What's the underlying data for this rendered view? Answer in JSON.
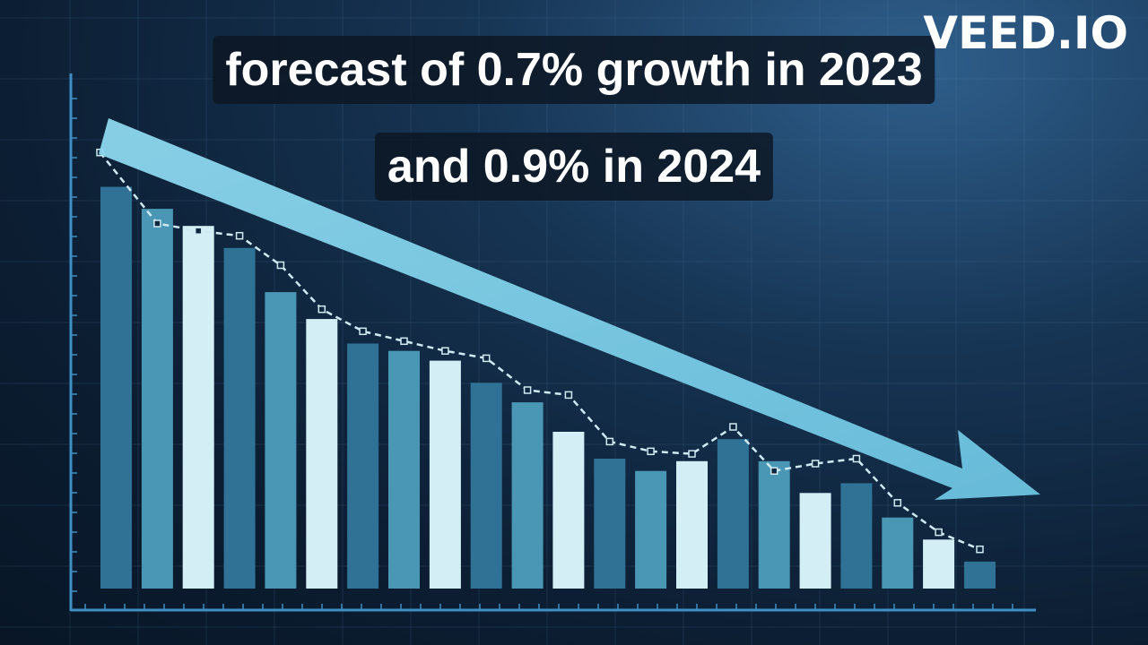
{
  "captions": {
    "line1": "forecast of 0.7% growth in 2023",
    "line2": "and 0.9% in 2024"
  },
  "watermark": "VEED.IO",
  "colors": {
    "background": "#0c1e33",
    "axis": "#3f8fc4",
    "arrow": "#7ccde6",
    "trend_line": "#cfeaf3",
    "bar_palette": [
      "#2f7296",
      "#4a97b5",
      "#d3eef4"
    ]
  },
  "chart_data": {
    "type": "bar",
    "title": "",
    "xlabel": "",
    "ylabel": "",
    "ylim": [
      0,
      100
    ],
    "grid": true,
    "bar_colors": [
      "#2f7296",
      "#4a97b5",
      "#d3eef4",
      "#2f7296",
      "#4a97b5",
      "#d3eef4",
      "#2f7296",
      "#4a97b5",
      "#d3eef4",
      "#2f7296",
      "#4a97b5",
      "#d3eef4",
      "#2f7296",
      "#4a97b5",
      "#d3eef4",
      "#2f7296",
      "#4a97b5",
      "#d3eef4",
      "#2f7296",
      "#4a97b5",
      "#d3eef4",
      "#2f7296"
    ],
    "series": [
      {
        "values": [
          82,
          77.5,
          74,
          69.5,
          60.5,
          55,
          50,
          48.5,
          46.5,
          42,
          38,
          32,
          26.5,
          24,
          26,
          30.5,
          26,
          19.5,
          21.5,
          14.5,
          10,
          5.5
        ]
      }
    ],
    "trend_line": {
      "style": "dashed",
      "values": [
        89,
        74.5,
        73,
        72,
        66,
        57,
        52.5,
        50.5,
        48.5,
        47,
        40.5,
        39.5,
        30,
        28,
        27.5,
        33,
        24,
        25.5,
        26.5,
        17.5,
        11.5,
        8
      ]
    },
    "annotation": "downward-arrow"
  }
}
